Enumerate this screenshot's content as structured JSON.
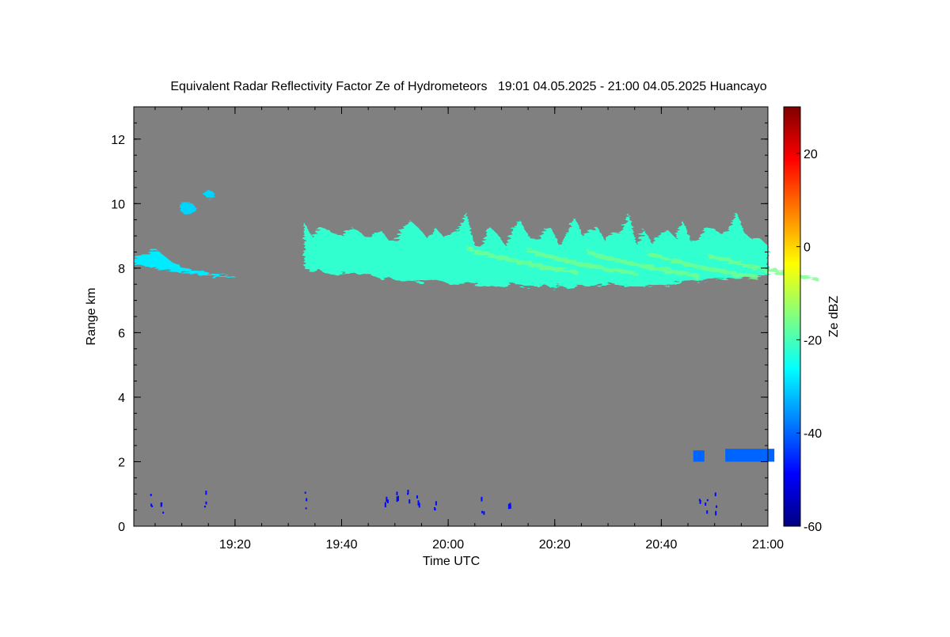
{
  "chart_data": {
    "type": "heatmap",
    "title": "Equivalent Radar Reflectivity Factor Ze of Hydrometeors   19:01 04.05.2025 - 21:00 04.05.2025 Huancayo",
    "xlabel": "Time UTC",
    "ylabel": "Range km",
    "x_range": [
      "19:01",
      "21:00"
    ],
    "x_ticks": [
      "19:20",
      "19:40",
      "20:00",
      "20:20",
      "20:40",
      "21:00"
    ],
    "ylim": [
      0,
      13
    ],
    "y_ticks": [
      0,
      2,
      4,
      6,
      8,
      10,
      12
    ],
    "colorbar": {
      "label": "Ze dBZ",
      "range": [
        -60,
        30
      ],
      "ticks": [
        -60,
        -40,
        -20,
        0,
        20
      ],
      "colormap": [
        "#000080",
        "#0000ff",
        "#0080ff",
        "#00ffff",
        "#80ff80",
        "#ffff00",
        "#ff8000",
        "#ff0000",
        "#800000"
      ]
    },
    "background_color": "#808080",
    "features": [
      {
        "name": "cirrus-left",
        "start": "19:01",
        "end": "19:20",
        "range_km": [
          7.7,
          8.6
        ],
        "ze_dbz": -28
      },
      {
        "name": "cloud-patch-upper-left",
        "start": "19:09",
        "end": "19:16",
        "range_km": [
          9.6,
          10.4
        ],
        "ze_dbz": -30
      },
      {
        "name": "main-cirrus-layer",
        "start": "19:33",
        "end": "21:00",
        "range_km": [
          7.3,
          9.8
        ],
        "ze_dbz": -22
      },
      {
        "name": "low-echoes-right",
        "start": "20:45",
        "end": "21:00",
        "range_km": [
          2.0,
          2.4
        ],
        "ze_dbz": -40
      },
      {
        "name": "near-ground-clutter",
        "start": "19:01",
        "end": "21:00",
        "range_km": [
          0.4,
          1.2
        ],
        "ze_dbz": -48
      }
    ]
  }
}
